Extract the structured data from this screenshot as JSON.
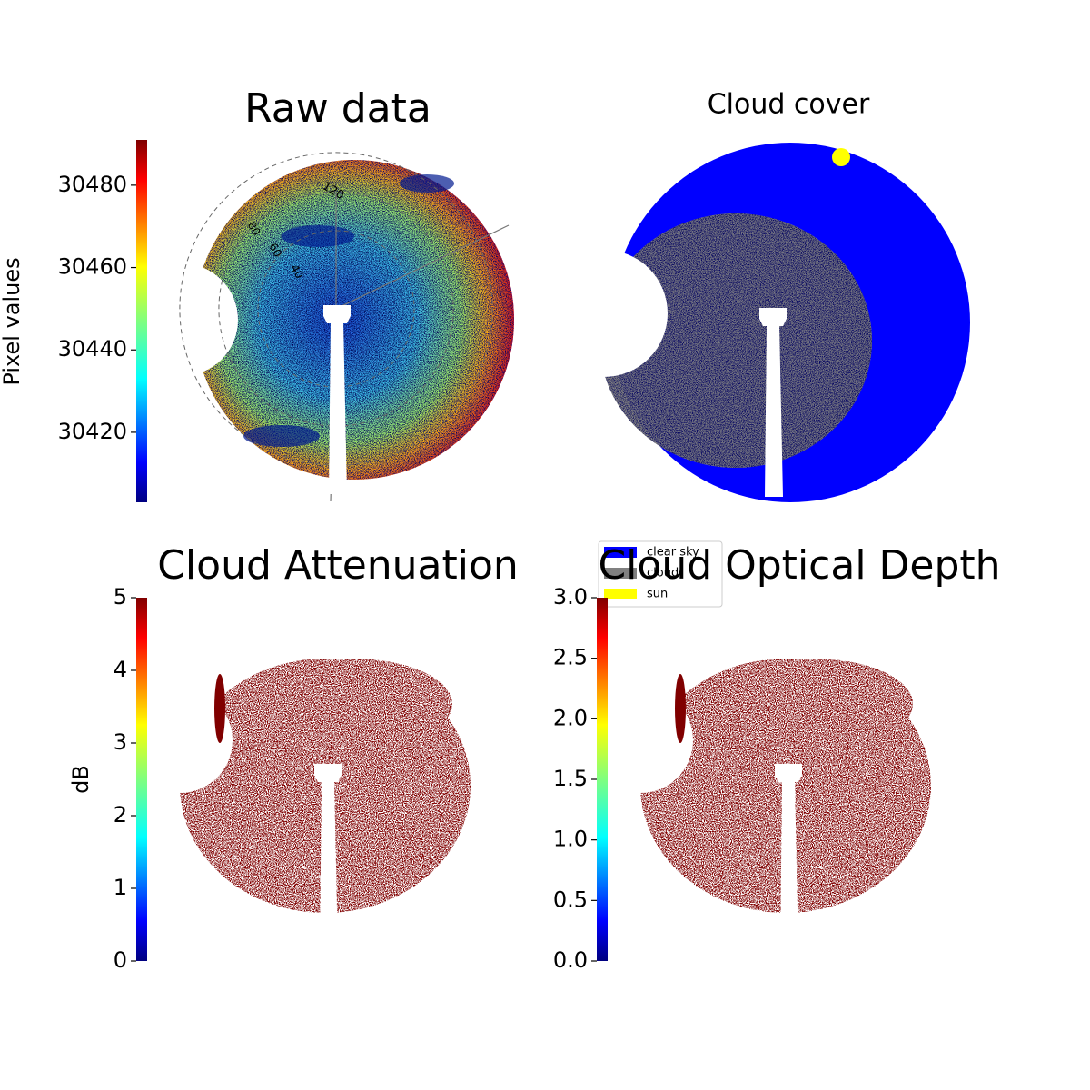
{
  "chart_data": [
    {
      "type": "image",
      "title": "Raw data",
      "colorbar_label": "Pixel values",
      "colormap": "jet",
      "ylim": [
        30403,
        30491
      ],
      "yticks": [
        30420,
        30440,
        30460,
        30480
      ],
      "rlim": [
        0,
        90
      ],
      "rticks": [
        40,
        60,
        80
      ],
      "thetaticks": [
        120
      ]
    },
    {
      "type": "image",
      "title": "Cloud cover",
      "series": [
        {
          "name": "clear sky",
          "color": "#0000ff"
        },
        {
          "name": "cloud",
          "color": "#808080"
        },
        {
          "name": "sun",
          "color": "#ffff00"
        }
      ]
    },
    {
      "type": "image",
      "title": "Cloud Attenuation",
      "colorbar_label": "dB",
      "colormap": "jet",
      "color": "#800000",
      "ylim": [
        0,
        5
      ],
      "yticks": [
        0,
        1,
        2,
        3,
        4,
        5
      ]
    },
    {
      "type": "image",
      "title": "Cloud Optical Depth",
      "colormap": "jet",
      "color": "#800000",
      "ylim": [
        0,
        3
      ],
      "yticks": [
        {
          "value": 0,
          "label": "0.0"
        },
        0.5,
        {
          "value": 1,
          "label": "1.0"
        },
        1.5,
        {
          "value": 2,
          "label": "2.0"
        },
        2.5,
        {
          "value": 3,
          "label": "3.0"
        }
      ]
    }
  ]
}
